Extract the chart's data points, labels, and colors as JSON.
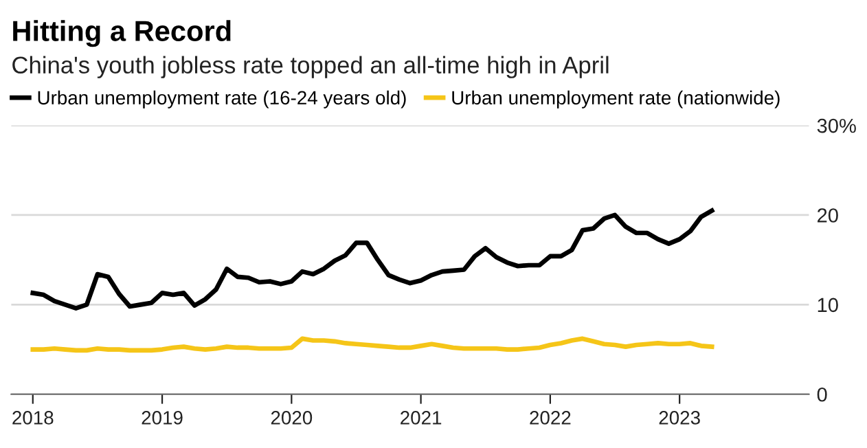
{
  "chart_data": {
    "type": "line",
    "title": "Hitting a Record",
    "subtitle": "China's youth jobless rate topped an all-time high in April",
    "x": [
      "2018-01",
      "2018-02",
      "2018-03",
      "2018-04",
      "2018-05",
      "2018-06",
      "2018-07",
      "2018-08",
      "2018-09",
      "2018-10",
      "2018-11",
      "2018-12",
      "2019-01",
      "2019-02",
      "2019-03",
      "2019-04",
      "2019-05",
      "2019-06",
      "2019-07",
      "2019-08",
      "2019-09",
      "2019-10",
      "2019-11",
      "2019-12",
      "2020-01",
      "2020-02",
      "2020-03",
      "2020-04",
      "2020-05",
      "2020-06",
      "2020-07",
      "2020-08",
      "2020-09",
      "2020-10",
      "2020-11",
      "2020-12",
      "2021-01",
      "2021-02",
      "2021-03",
      "2021-04",
      "2021-05",
      "2021-06",
      "2021-07",
      "2021-08",
      "2021-09",
      "2021-10",
      "2021-11",
      "2021-12",
      "2022-01",
      "2022-02",
      "2022-03",
      "2022-04",
      "2022-05",
      "2022-06",
      "2022-07",
      "2022-08",
      "2022-09",
      "2022-10",
      "2022-11",
      "2022-12",
      "2023-01",
      "2023-02",
      "2023-03",
      "2023-04"
    ],
    "series": [
      {
        "name": "Urban unemployment rate (16-24 years old)",
        "color": "#000000",
        "values": [
          11.3,
          11.1,
          10.4,
          10.0,
          9.6,
          10.0,
          13.4,
          13.1,
          11.2,
          9.8,
          10.0,
          10.2,
          11.3,
          11.1,
          11.3,
          9.9,
          10.6,
          11.7,
          14.0,
          13.1,
          13.0,
          12.5,
          12.6,
          12.3,
          12.6,
          13.7,
          13.4,
          14.0,
          14.9,
          15.5,
          16.9,
          16.9,
          15.0,
          13.3,
          12.8,
          12.4,
          12.7,
          13.3,
          13.7,
          13.8,
          13.9,
          15.4,
          16.3,
          15.3,
          14.7,
          14.3,
          14.4,
          14.4,
          15.4,
          15.4,
          16.1,
          18.3,
          18.5,
          19.6,
          20.0,
          18.7,
          18.0,
          18.0,
          17.3,
          16.8,
          17.3,
          18.2,
          19.8,
          20.5
        ]
      },
      {
        "name": "Urban unemployment rate (nationwide)",
        "color": "#f5c518",
        "values": [
          5.0,
          5.0,
          5.1,
          5.0,
          4.9,
          4.9,
          5.1,
          5.0,
          5.0,
          4.9,
          4.9,
          4.9,
          5.0,
          5.2,
          5.3,
          5.1,
          5.0,
          5.1,
          5.3,
          5.2,
          5.2,
          5.1,
          5.1,
          5.1,
          5.2,
          6.2,
          6.0,
          6.0,
          5.9,
          5.7,
          5.6,
          5.5,
          5.4,
          5.3,
          5.2,
          5.2,
          5.4,
          5.6,
          5.4,
          5.2,
          5.1,
          5.1,
          5.1,
          5.1,
          5.0,
          5.0,
          5.1,
          5.2,
          5.5,
          5.7,
          6.0,
          6.2,
          5.9,
          5.6,
          5.5,
          5.3,
          5.5,
          5.6,
          5.7,
          5.6,
          5.6,
          5.7,
          5.4,
          5.3
        ]
      }
    ],
    "xlim": [
      "2017-11",
      "2024-01"
    ],
    "xticks": [
      {
        "value": "2018-01",
        "label": "2018"
      },
      {
        "value": "2019-01",
        "label": "2019"
      },
      {
        "value": "2020-01",
        "label": "2020"
      },
      {
        "value": "2021-01",
        "label": "2021"
      },
      {
        "value": "2022-01",
        "label": "2022"
      },
      {
        "value": "2023-01",
        "label": "2023"
      }
    ],
    "ylim": [
      0,
      30
    ],
    "yticks": [
      0,
      10,
      20,
      {
        "value": 30,
        "label": "30%"
      }
    ],
    "grid": "y",
    "legend": "top",
    "line_style": "solid",
    "marker": "none"
  }
}
